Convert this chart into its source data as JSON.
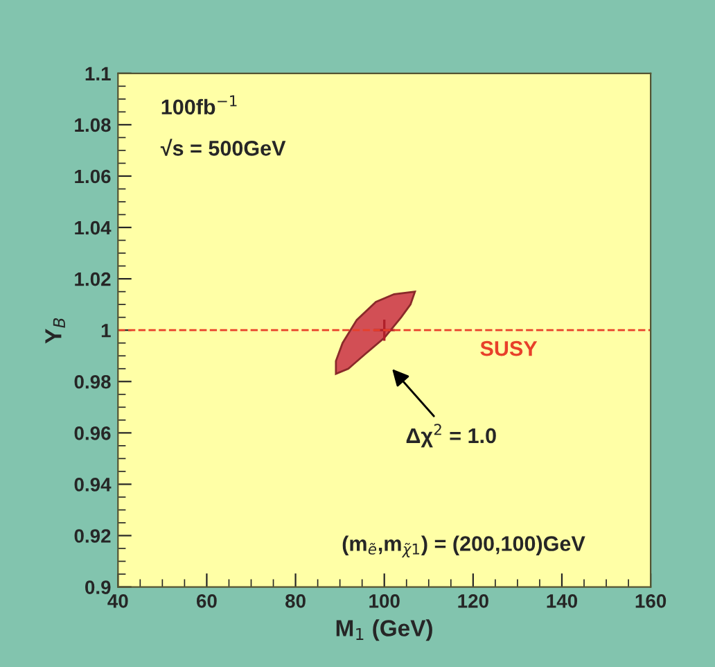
{
  "chart_data": {
    "type": "area",
    "xlabel": "M$_{1}$ (GeV)",
    "ylabel": "Y$_{B}$",
    "xlim": [
      40,
      160
    ],
    "xticks": [
      40,
      60,
      80,
      100,
      120,
      140,
      160
    ],
    "ylim": [
      0.9,
      1.1
    ],
    "yticks": [
      0.9,
      0.92,
      0.94,
      0.96,
      0.98,
      1,
      1.02,
      1.04,
      1.06,
      1.08,
      1.1
    ],
    "series": [
      {
        "color": "#d24f55",
        "x": [
          106.9,
          102.2,
          98.1,
          93.8,
          90.6,
          89.1,
          89.1,
          91.9,
          95.9,
          100.0,
          103.8,
          105.9
        ],
        "values": [
          1.015,
          1.014,
          1.011,
          1.004,
          0.995,
          0.988,
          0.983,
          0.985,
          0.991,
          0.997,
          1.005,
          1.01
        ]
      },
      {
        "type": "scatter",
        "color": "#b0202a",
        "marker": "cross",
        "x": [
          100
        ],
        "values": [
          1
        ]
      }
    ],
    "ref_lines": [
      {
        "axis": "y",
        "value": 1,
        "label": "SUSY",
        "color": "#e8402a",
        "line_style": "dashed"
      }
    ],
    "annotations": [
      "100fb$^{−1}$",
      "√s = 500GeV",
      "Δχ$^{2}$ = 1.0",
      "(m$_{ẽ}$,m$_{χ̃1}$) = (200,100)GeV"
    ],
    "grid": false
  }
}
